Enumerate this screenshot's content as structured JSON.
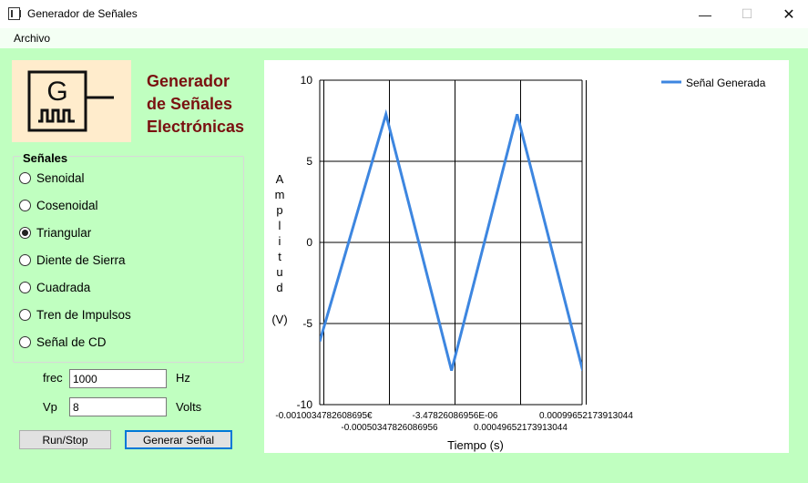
{
  "window": {
    "title": "Generador de Señales",
    "min": "—",
    "max": "☐",
    "close": "✕"
  },
  "menu": {
    "items": [
      {
        "label": "Archivo"
      }
    ]
  },
  "logo": {
    "letter": "G"
  },
  "heading": {
    "line1": "Generador",
    "line2": "de Señales",
    "line3": "Electrónicas"
  },
  "signals": {
    "title": "Señales",
    "options": [
      {
        "label": "Senoidal",
        "checked": false
      },
      {
        "label": "Cosenoidal",
        "checked": false
      },
      {
        "label": "Triangular",
        "checked": true
      },
      {
        "label": "Diente de Sierra",
        "checked": false
      },
      {
        "label": "Cuadrada",
        "checked": false
      },
      {
        "label": "Tren de Impulsos",
        "checked": false
      },
      {
        "label": "Señal de CD",
        "checked": false
      }
    ]
  },
  "params": {
    "frec": {
      "label": "frec",
      "value": "1000",
      "unit": "Hz"
    },
    "vp": {
      "label": "Vp",
      "value": "8",
      "unit": "Volts"
    }
  },
  "buttons": {
    "run_stop": "Run/Stop",
    "generate": "Generar Señal"
  },
  "colors": {
    "background": "#c0ffc0",
    "heading": "#7a1010",
    "series": "#3d86e0"
  },
  "chart_data": {
    "type": "line",
    "xlabel": "Tiempo (s)",
    "ylabel_letters": [
      "A",
      "m",
      "p",
      "l",
      "i",
      "t",
      "u",
      "d"
    ],
    "ylabel_unit": "(V)",
    "xlim": [
      -0.00103478,
      0.00096522
    ],
    "ylim": [
      -10,
      10
    ],
    "yticks": [
      {
        "value": -10,
        "label": "-10"
      },
      {
        "value": -5,
        "label": "-5"
      },
      {
        "value": 0,
        "label": "0"
      },
      {
        "value": 5,
        "label": "5"
      },
      {
        "value": 10,
        "label": "10"
      }
    ],
    "xticks": [
      {
        "value": -0.0010034782608695,
        "label": "-0.0010034782608695€",
        "row": 0
      },
      {
        "value": -0.00050347826086956,
        "label": "-0.00050347826086956",
        "row": 1
      },
      {
        "value": -3.47826086956e-06,
        "label": "-3.47826086956E-06",
        "row": 0
      },
      {
        "value": 0.00049652173913044,
        "label": "0.00049652173913044",
        "row": 1
      },
      {
        "value": 0.00099652173913044,
        "label": "0.00099652173913044",
        "row": 0
      }
    ],
    "grid": true,
    "legend_position": "top-right",
    "series": [
      {
        "name": "Señal Generada",
        "x": [
          -0.00103478,
          -0.00053,
          -3e-05,
          0.00047,
          0.00097
        ],
        "y": [
          -6.1,
          7.9,
          -7.9,
          7.9,
          -7.9
        ]
      }
    ],
    "series_tail": {
      "x": 0.00102,
      "y": -6.1
    }
  }
}
